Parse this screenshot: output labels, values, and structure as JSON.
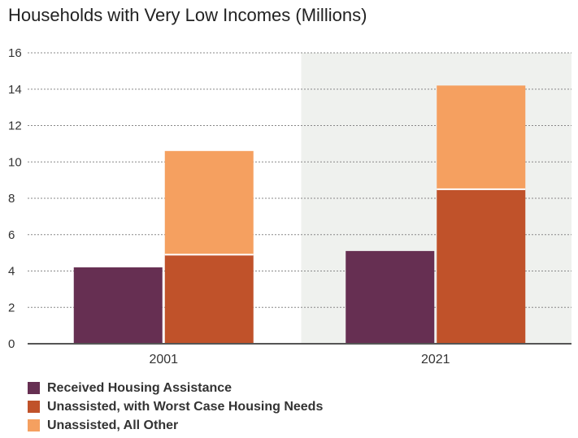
{
  "chart_data": {
    "type": "bar",
    "title": "Households with Very Low Incomes (Millions)",
    "xlabel": "",
    "ylabel": "",
    "categories": [
      "2001",
      "2021"
    ],
    "ylim": [
      0,
      16
    ],
    "yticks": [
      0,
      2,
      4,
      6,
      8,
      10,
      12,
      14,
      16
    ],
    "grid": "horizontal dotted",
    "highlighted_category": "2021",
    "legend_position": "bottom-left",
    "series": [
      {
        "name": "Received Housing Assistance",
        "color": "#662f52",
        "stack": "assisted",
        "values": [
          4.2,
          5.1
        ]
      },
      {
        "name": "Unassisted, with Worst Case Housing Needs",
        "color": "#c0522a",
        "stack": "unassisted",
        "values": [
          4.9,
          8.5
        ]
      },
      {
        "name": "Unassisted, All Other",
        "color": "#f5a060",
        "stack": "unassisted",
        "values": [
          5.7,
          5.7
        ]
      }
    ]
  },
  "colors": {
    "highlight_background": "#eff1ee",
    "axis": "#555555",
    "grid": "#888888"
  }
}
